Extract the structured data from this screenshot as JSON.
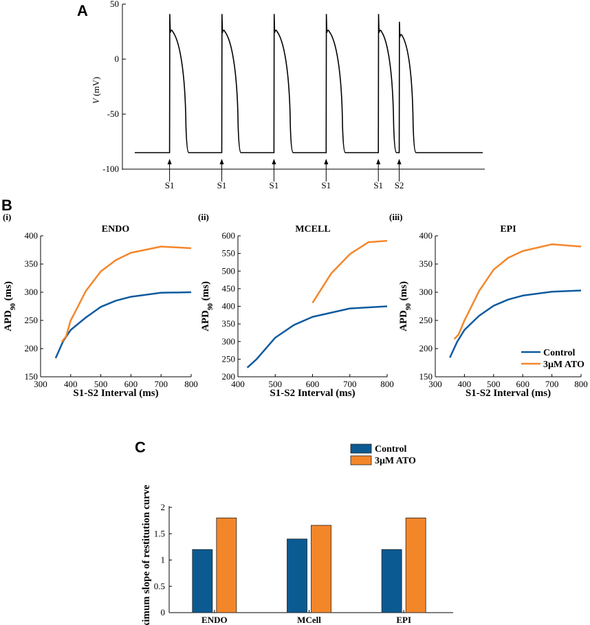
{
  "panels": {
    "A": {
      "letter": "A",
      "ylabel_var": "V",
      "ylabel_unit": " (mV)",
      "ylim": [
        -100,
        50
      ],
      "yticks": [
        "50",
        "0",
        "-50",
        "-100"
      ],
      "stim_labels": [
        "S1",
        "S1",
        "S1",
        "S1",
        "S1",
        "S2"
      ]
    },
    "B": {
      "letter": "B"
    },
    "C": {
      "letter": "C"
    }
  },
  "chart_data": [
    {
      "type": "line",
      "panel": "A",
      "title": "",
      "xlabel": "",
      "ylabel": "V (mV)",
      "ylim": [
        -100,
        50
      ],
      "resting_potential": -85,
      "x_range_ms": [
        0,
        5000
      ],
      "stimuli": [
        {
          "label": "S1",
          "t": 500
        },
        {
          "label": "S1",
          "t": 1250
        },
        {
          "label": "S1",
          "t": 2000
        },
        {
          "label": "S1",
          "t": 2750
        },
        {
          "label": "S1",
          "t": 3500
        },
        {
          "label": "S2",
          "t": 3800
        }
      ],
      "action_potentials": [
        {
          "start": 500,
          "peak": 41,
          "notch": 24,
          "plateau": 27,
          "apd": 235
        },
        {
          "start": 1250,
          "peak": 41,
          "notch": 24,
          "plateau": 27,
          "apd": 235
        },
        {
          "start": 2000,
          "peak": 41,
          "notch": 24,
          "plateau": 27,
          "apd": 235
        },
        {
          "start": 2750,
          "peak": 41,
          "notch": 24,
          "plateau": 27,
          "apd": 235
        },
        {
          "start": 3500,
          "peak": 41,
          "notch": 24,
          "plateau": 27,
          "apd": 220
        },
        {
          "start": 3800,
          "peak": 34,
          "notch": 20,
          "plateau": 23,
          "apd": 200
        }
      ]
    },
    {
      "type": "line",
      "panel": "B(i)",
      "sub": "(i)",
      "title": "ENDO",
      "xlabel": "S1-S2 Interval (ms)",
      "ylabel": "APD90 (ms)",
      "xlim": [
        300,
        800
      ],
      "ylim": [
        150,
        400
      ],
      "xticks": [
        300,
        400,
        500,
        600,
        700,
        800
      ],
      "yticks": [
        150,
        200,
        250,
        300,
        350,
        400
      ],
      "series": [
        {
          "name": "Control",
          "color": "#0c5a9e",
          "x": [
            350,
            375,
            400,
            450,
            500,
            550,
            600,
            700,
            800
          ],
          "y": [
            183,
            213,
            233,
            255,
            274,
            285,
            292,
            299,
            300
          ]
        },
        {
          "name": "3μM ATO",
          "color": "#f4862a",
          "x": [
            370,
            385,
            400,
            410,
            450,
            500,
            550,
            600,
            700,
            800
          ],
          "y": [
            212,
            222,
            250,
            260,
            302,
            337,
            357,
            370,
            381,
            378
          ]
        }
      ]
    },
    {
      "type": "line",
      "panel": "B(ii)",
      "sub": "(ii)",
      "title": "MCELL",
      "xlabel": "S1-S2 Interval (ms)",
      "ylabel": "APD90 (ms)",
      "xlim": [
        400,
        800
      ],
      "ylim": [
        200,
        600
      ],
      "xticks": [
        400,
        500,
        600,
        700,
        800
      ],
      "yticks": [
        200,
        250,
        300,
        350,
        400,
        450,
        500,
        550,
        600
      ],
      "series": [
        {
          "name": "Control",
          "color": "#0c5a9e",
          "x": [
            425,
            450,
            500,
            550,
            600,
            700,
            800
          ],
          "y": [
            226,
            250,
            311,
            347,
            370,
            394,
            400
          ]
        },
        {
          "name": "3μM ATO",
          "color": "#f4862a",
          "x": [
            600,
            650,
            700,
            750,
            800
          ],
          "y": [
            410,
            493,
            548,
            582,
            586
          ]
        }
      ]
    },
    {
      "type": "line",
      "panel": "B(iii)",
      "sub": "(iii)",
      "title": "EPI",
      "xlabel": "S1-S2 Interval (ms)",
      "ylabel": "APD90 (ms)",
      "xlim": [
        300,
        800
      ],
      "ylim": [
        150,
        400
      ],
      "xticks": [
        300,
        400,
        500,
        600,
        700,
        800
      ],
      "yticks": [
        150,
        200,
        250,
        300,
        350,
        400
      ],
      "legend": {
        "position": "bottom-right",
        "entries": [
          "Control",
          "3μM ATO"
        ]
      },
      "series": [
        {
          "name": "Control",
          "color": "#0c5a9e",
          "x": [
            350,
            375,
            400,
            450,
            500,
            550,
            600,
            700,
            800
          ],
          "y": [
            184,
            212,
            233,
            258,
            276,
            287,
            294,
            301,
            303
          ]
        },
        {
          "name": "3μM ATO",
          "color": "#f4862a",
          "x": [
            365,
            380,
            400,
            410,
            450,
            500,
            550,
            600,
            700,
            800
          ],
          "y": [
            217,
            225,
            250,
            260,
            302,
            340,
            361,
            373,
            385,
            381
          ]
        }
      ]
    },
    {
      "type": "bar",
      "panel": "C",
      "title": "",
      "xlabel": "",
      "ylabel": "Maximum slope of restitution curve",
      "ylim": [
        0,
        2
      ],
      "yticks": [
        0,
        0.5,
        1,
        1.5,
        2
      ],
      "categories": [
        "ENDO",
        "MCell",
        "EPI"
      ],
      "legend": {
        "position": "top",
        "entries": [
          "Control",
          "3μM ATO"
        ]
      },
      "series": [
        {
          "name": "Control",
          "color": "#0c5a92",
          "values": [
            1.2,
            1.4,
            1.2
          ]
        },
        {
          "name": "3μM ATO",
          "color": "#f4862a",
          "values": [
            1.8,
            1.66,
            1.8
          ]
        }
      ]
    }
  ]
}
